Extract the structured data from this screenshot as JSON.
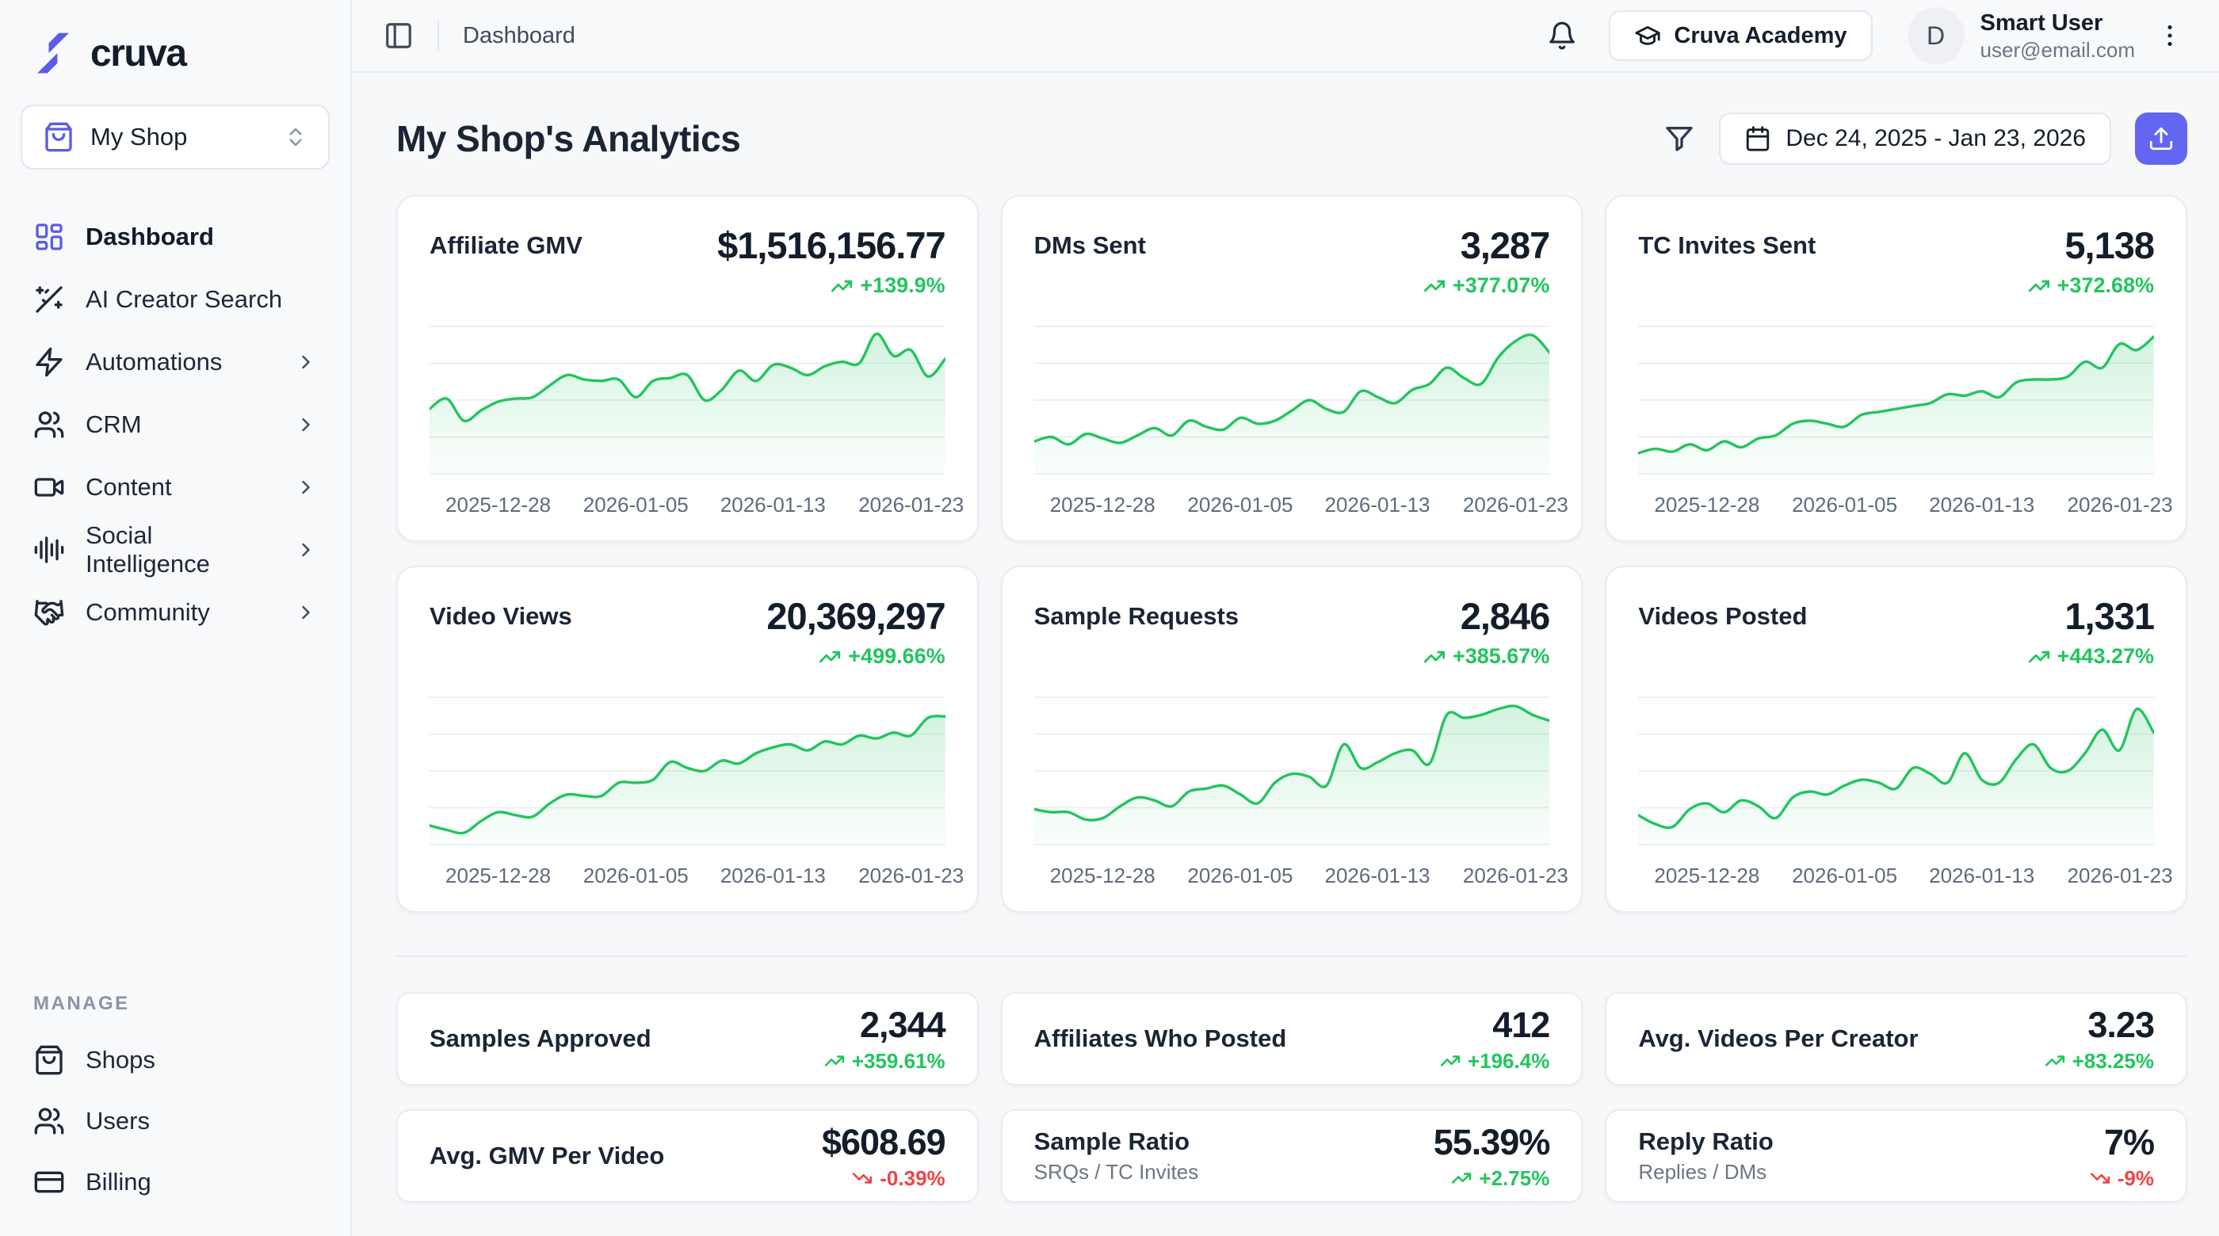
{
  "brand": {
    "name": "cruva"
  },
  "colors": {
    "accent": "#6366f1",
    "logo": "#5b5ce6",
    "positive": "#22c55e",
    "negative": "#ef4444",
    "card_border": "#e9ecf1",
    "background": "#f7f8fa"
  },
  "sidebar": {
    "shop_selector": {
      "label": "My Shop"
    },
    "nav": [
      {
        "label": "Dashboard",
        "icon": "dashboard-grid",
        "active": true,
        "chevron": false
      },
      {
        "label": "AI Creator Search",
        "icon": "wand-sparkles",
        "active": false,
        "chevron": false
      },
      {
        "label": "Automations",
        "icon": "lightning",
        "active": false,
        "chevron": true
      },
      {
        "label": "CRM",
        "icon": "users",
        "active": false,
        "chevron": true
      },
      {
        "label": "Content",
        "icon": "video-camera",
        "active": false,
        "chevron": true
      },
      {
        "label": "Social Intelligence",
        "icon": "audio-waveform",
        "active": false,
        "chevron": true
      },
      {
        "label": "Community",
        "icon": "handshake",
        "active": false,
        "chevron": true
      }
    ],
    "manage": {
      "heading": "MANAGE",
      "items": [
        {
          "label": "Shops",
          "icon": "shopping-bag"
        },
        {
          "label": "Users",
          "icon": "users"
        },
        {
          "label": "Billing",
          "icon": "credit-card"
        }
      ]
    }
  },
  "header": {
    "breadcrumb": "Dashboard",
    "academy_button": "Cruva Academy",
    "user": {
      "initial": "D",
      "name": "Smart User",
      "email": "user@email.com"
    }
  },
  "page": {
    "title": "My Shop's Analytics",
    "date_range": "Dec 24, 2025 - Jan 23, 2026"
  },
  "chart_data": [
    {
      "type": "area",
      "title": "Affiliate GMV",
      "value": "$1,516,156.77",
      "change": "+139.9%",
      "trend": "up",
      "line_color": "#22c55e",
      "x_range": [
        "2025-12-24",
        "2026-01-23"
      ],
      "x_ticks": [
        "2025-12-28",
        "2026-01-05",
        "2026-01-13",
        "2026-01-23"
      ],
      "ylim": [
        0,
        100
      ],
      "units": "relative",
      "values": [
        44,
        51,
        36,
        43,
        49,
        51,
        52,
        60,
        67,
        64,
        63,
        64,
        52,
        63,
        65,
        67,
        50,
        57,
        70,
        63,
        74,
        72,
        67,
        73,
        76,
        75,
        95,
        80,
        84,
        66,
        78
      ]
    },
    {
      "type": "area",
      "title": "DMs Sent",
      "value": "3,287",
      "change": "+377.07%",
      "trend": "up",
      "line_color": "#22c55e",
      "x_range": [
        "2025-12-24",
        "2026-01-23"
      ],
      "x_ticks": [
        "2025-12-28",
        "2026-01-05",
        "2026-01-13",
        "2026-01-23"
      ],
      "ylim": [
        0,
        100
      ],
      "units": "relative",
      "values": [
        22,
        25,
        20,
        27,
        24,
        21,
        26,
        31,
        26,
        36,
        32,
        30,
        38,
        34,
        36,
        43,
        50,
        44,
        42,
        56,
        52,
        48,
        57,
        61,
        72,
        65,
        61,
        79,
        90,
        94,
        82
      ]
    },
    {
      "type": "area",
      "title": "TC Invites Sent",
      "value": "5,138",
      "change": "+372.68%",
      "trend": "up",
      "line_color": "#22c55e",
      "x_range": [
        "2025-12-24",
        "2026-01-23"
      ],
      "x_ticks": [
        "2025-12-28",
        "2026-01-05",
        "2026-01-13",
        "2026-01-23"
      ],
      "ylim": [
        0,
        100
      ],
      "units": "relative",
      "values": [
        14,
        17,
        15,
        20,
        16,
        22,
        18,
        24,
        26,
        34,
        36,
        34,
        32,
        40,
        42,
        44,
        46,
        48,
        54,
        53,
        56,
        52,
        62,
        64,
        64,
        66,
        76,
        72,
        88,
        84,
        93
      ]
    },
    {
      "type": "area",
      "title": "Video Views",
      "value": "20,369,297",
      "change": "+499.66%",
      "trend": "up",
      "line_color": "#22c55e",
      "x_range": [
        "2025-12-24",
        "2026-01-23"
      ],
      "x_ticks": [
        "2025-12-28",
        "2026-01-05",
        "2026-01-13",
        "2026-01-23"
      ],
      "ylim": [
        0,
        100
      ],
      "units": "relative",
      "values": [
        13,
        10,
        8,
        16,
        22,
        20,
        19,
        28,
        34,
        33,
        33,
        42,
        42,
        44,
        56,
        52,
        50,
        57,
        55,
        62,
        66,
        68,
        64,
        70,
        68,
        74,
        72,
        76,
        74,
        86,
        87
      ]
    },
    {
      "type": "area",
      "title": "Sample Requests",
      "value": "2,846",
      "change": "+385.67%",
      "trend": "up",
      "line_color": "#22c55e",
      "x_range": [
        "2025-12-24",
        "2026-01-23"
      ],
      "x_ticks": [
        "2025-12-28",
        "2026-01-05",
        "2026-01-13",
        "2026-01-23"
      ],
      "ylim": [
        0,
        100
      ],
      "units": "relative",
      "values": [
        24,
        22,
        22,
        17,
        18,
        26,
        32,
        30,
        26,
        36,
        38,
        40,
        34,
        28,
        42,
        48,
        46,
        40,
        68,
        52,
        56,
        62,
        64,
        55,
        88,
        86,
        88,
        92,
        94,
        88,
        84
      ]
    },
    {
      "type": "area",
      "title": "Videos Posted",
      "value": "1,331",
      "change": "+443.27%",
      "trend": "up",
      "line_color": "#22c55e",
      "x_range": [
        "2025-12-24",
        "2026-01-23"
      ],
      "x_ticks": [
        "2025-12-28",
        "2026-01-05",
        "2026-01-13",
        "2026-01-23"
      ],
      "ylim": [
        0,
        100
      ],
      "units": "relative",
      "values": [
        20,
        14,
        12,
        24,
        28,
        22,
        30,
        26,
        18,
        32,
        36,
        34,
        40,
        44,
        42,
        38,
        52,
        48,
        42,
        62,
        44,
        42,
        58,
        68,
        52,
        50,
        62,
        78,
        64,
        92,
        76
      ]
    }
  ],
  "stats": [
    {
      "label": "Samples Approved",
      "sublabel": "",
      "value": "2,344",
      "change": "+359.61%",
      "trend": "up"
    },
    {
      "label": "Affiliates Who Posted",
      "sublabel": "",
      "value": "412",
      "change": "+196.4%",
      "trend": "up"
    },
    {
      "label": "Avg. Videos Per Creator",
      "sublabel": "",
      "value": "3.23",
      "change": "+83.25%",
      "trend": "up"
    },
    {
      "label": "Avg. GMV Per Video",
      "sublabel": "",
      "value": "$608.69",
      "change": "-0.39%",
      "trend": "down"
    },
    {
      "label": "Sample Ratio",
      "sublabel": "SRQs / TC Invites",
      "value": "55.39%",
      "change": "+2.75%",
      "trend": "up"
    },
    {
      "label": "Reply Ratio",
      "sublabel": "Replies / DMs",
      "value": "7%",
      "change": "-9%",
      "trend": "down"
    }
  ]
}
